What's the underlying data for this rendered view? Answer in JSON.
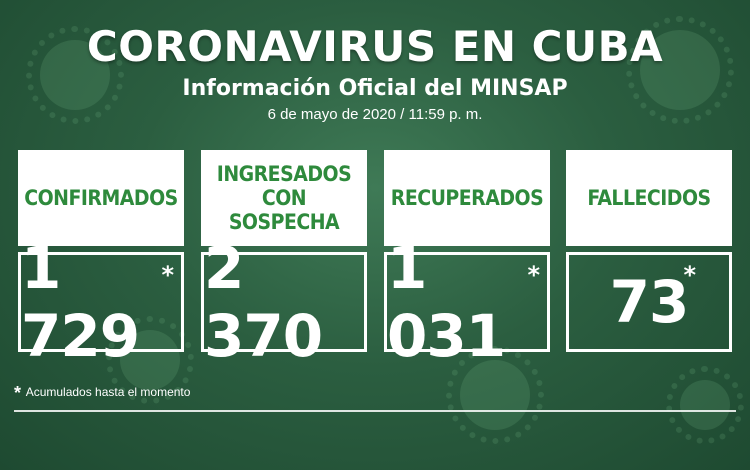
{
  "header": {
    "title": "CORONAVIRUS EN CUBA",
    "subtitle": "Información Oficial del MINSAP",
    "date": "6 de mayo de 2020 / 11:59 p. m."
  },
  "cards": [
    {
      "label": "CONFIRMADOS",
      "value": "1 729",
      "marker": "*"
    },
    {
      "label": "INGRESADOS CON SOSPECHA",
      "value": "2 370",
      "marker": ""
    },
    {
      "label": "RECUPERADOS",
      "value": "1 031",
      "marker": "*"
    },
    {
      "label": "FALLECIDOS",
      "value": "73",
      "marker": "*"
    }
  ],
  "footnote": {
    "marker": "*",
    "text": "Acumulados hasta el momento"
  },
  "colors": {
    "background": "#2b5e40",
    "label_text": "#2e8a3c",
    "card_label_bg": "#ffffff",
    "value_text": "#ffffff"
  }
}
